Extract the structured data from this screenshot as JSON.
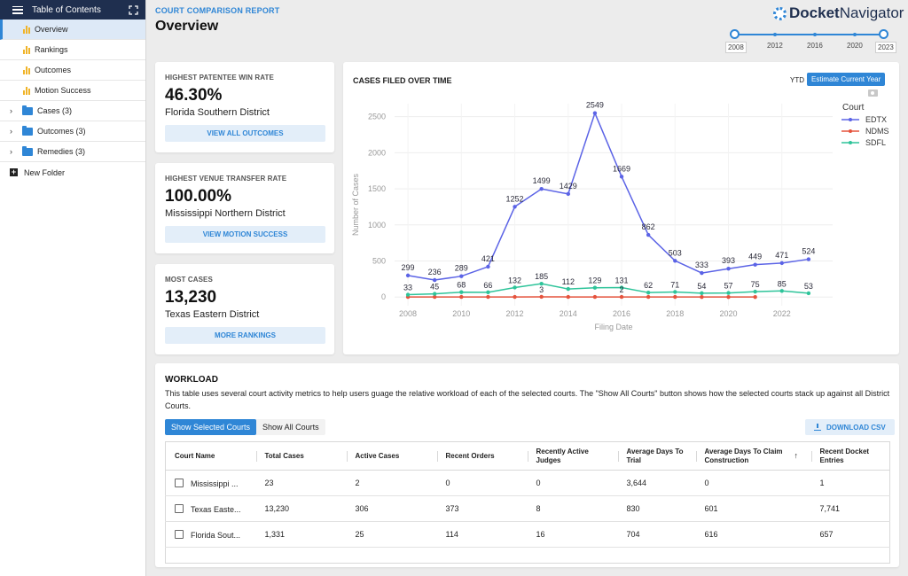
{
  "sidebar": {
    "title": "Table of Contents",
    "items": [
      {
        "label": "Overview",
        "active": true
      },
      {
        "label": "Rankings"
      },
      {
        "label": "Outcomes"
      },
      {
        "label": "Motion Success"
      }
    ],
    "folders": [
      {
        "label": "Cases (3)"
      },
      {
        "label": "Outcomes (3)"
      },
      {
        "label": "Remedies (3)"
      }
    ],
    "new_folder": "New Folder"
  },
  "header": {
    "report_label": "COURT COMPARISON REPORT",
    "title": "Overview",
    "logo_bold": "Docket",
    "logo_light": "Navigator"
  },
  "year_slider": {
    "labels": [
      "2008",
      "2012",
      "2016",
      "2020",
      "2023"
    ],
    "min": 2008,
    "max": 2023,
    "selected": [
      2008,
      2023
    ]
  },
  "stats": [
    {
      "label": "HIGHEST PATENTEE WIN RATE",
      "value": "46.30%",
      "sub": "Florida Southern District",
      "button": "VIEW ALL OUTCOMES"
    },
    {
      "label": "HIGHEST VENUE TRANSFER RATE",
      "value": "100.00%",
      "sub": "Mississippi Northern District",
      "button": "VIEW MOTION SUCCESS"
    },
    {
      "label": "MOST CASES",
      "value": "13,230",
      "sub": "Texas Eastern District",
      "button": "MORE RANKINGS"
    }
  ],
  "chart_panel": {
    "title": "CASES FILED OVER TIME",
    "ytd": "YTD",
    "estimate": "Estimate Current Year"
  },
  "chart_data": {
    "type": "line",
    "title": "CASES FILED OVER TIME",
    "xlabel": "Filing Date",
    "ylabel": "Number of Cases",
    "xlim": [
      2007.5,
      2023.9
    ],
    "ylim": [
      -120,
      2680
    ],
    "xticks": [
      2008,
      2010,
      2012,
      2014,
      2016,
      2018,
      2020,
      2022
    ],
    "yticks": [
      0,
      500,
      1000,
      1500,
      2000,
      2500
    ],
    "legend_title": "Court",
    "legend_position": "top-right",
    "grid": true,
    "series": [
      {
        "name": "EDTX",
        "color": "#5b63e6",
        "x": [
          2008,
          2009,
          2010,
          2011,
          2012,
          2013,
          2014,
          2015,
          2016,
          2017,
          2018,
          2019,
          2020,
          2021,
          2022,
          2023
        ],
        "values": [
          299,
          236,
          289,
          421,
          1252,
          1499,
          1429,
          2549,
          1669,
          862,
          503,
          333,
          393,
          449,
          471,
          524
        ]
      },
      {
        "name": "NDMS",
        "color": "#e5533d",
        "x": [
          2008,
          2009,
          2010,
          2011,
          2012,
          2013,
          2014,
          2015,
          2016,
          2017,
          2018,
          2019,
          2020,
          2021
        ],
        "values": [
          2,
          2,
          2,
          2,
          2,
          3,
          2,
          2,
          2,
          2,
          2,
          1,
          1,
          1
        ],
        "labels": [
          [
            2013,
            "3"
          ],
          [
            2016,
            "2"
          ]
        ]
      },
      {
        "name": "SDFL",
        "color": "#2ec49a",
        "x": [
          2008,
          2009,
          2010,
          2011,
          2012,
          2013,
          2014,
          2015,
          2016,
          2017,
          2018,
          2019,
          2020,
          2021,
          2022,
          2023
        ],
        "values": [
          33,
          45,
          68,
          66,
          132,
          185,
          112,
          129,
          131,
          62,
          71,
          54,
          57,
          75,
          85,
          53
        ]
      }
    ],
    "labels_edtx": [
      299,
      236,
      289,
      421,
      1252,
      1499,
      1429,
      2549,
      1669,
      862,
      503,
      333,
      393,
      449,
      471,
      524
    ],
    "labels_sdfl": [
      33,
      45,
      68,
      66,
      132,
      185,
      112,
      129,
      131,
      62,
      71,
      54,
      57,
      75,
      85,
      53
    ]
  },
  "workload": {
    "title": "WORKLOAD",
    "description": "This table uses several court activity metrics to help users guage the relative workload of each of the selected courts. The \"Show All Courts\" button shows how the selected courts stack up against all District Courts.",
    "toggle_selected": "Show Selected Courts",
    "toggle_all": "Show All Courts",
    "download": "DOWNLOAD CSV",
    "columns": [
      "Court Name",
      "Total Cases",
      "Active Cases",
      "Recent Orders",
      "Recently Active Judges",
      "Average Days To Trial",
      "Average Days To Claim Construction",
      "Recent Docket Entries"
    ],
    "rows": [
      [
        "Mississippi ...",
        "23",
        "2",
        "0",
        "0",
        "3,644",
        "0",
        "1"
      ],
      [
        "Texas Easte...",
        "13,230",
        "306",
        "373",
        "8",
        "830",
        "601",
        "7,741"
      ],
      [
        "Florida Sout...",
        "1,331",
        "25",
        "114",
        "16",
        "704",
        "616",
        "657"
      ]
    ]
  }
}
